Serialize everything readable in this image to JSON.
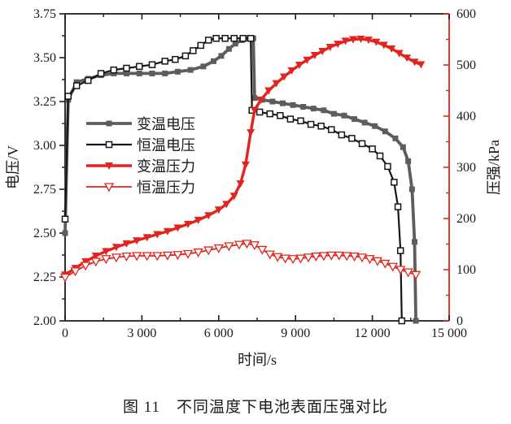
{
  "figure": {
    "caption": "图 11　不同温度下电池表面压强对比"
  },
  "chart_data": {
    "type": "line",
    "title": "",
    "x_axis": {
      "label": "时间/s",
      "min": 0,
      "max": 15000,
      "major_ticks": [
        0,
        3000,
        6000,
        9000,
        12000,
        15000
      ],
      "tick_labels": [
        "0",
        "3 000",
        "6 000",
        "9 000",
        "12 000",
        "15 000"
      ],
      "minor_step": 1500
    },
    "y_left": {
      "label": "电压/V",
      "min": 2.0,
      "max": 3.75,
      "major_ticks": [
        2.0,
        2.25,
        2.5,
        2.75,
        3.0,
        3.25,
        3.5,
        3.75
      ],
      "tick_labels": [
        "2.00",
        "2.25",
        "2.50",
        "2.75",
        "3.00",
        "3.25",
        "3.50",
        "3.75"
      ],
      "minor_step": 0.125,
      "axis_color": "#1a1a1a",
      "text_color": "#1a1a1a"
    },
    "y_right": {
      "label": "压强/kPa",
      "min": 0,
      "max": 600,
      "major_ticks": [
        0,
        100,
        200,
        300,
        400,
        500,
        600
      ],
      "tick_labels": [
        "0",
        "100",
        "200",
        "300",
        "400",
        "500",
        "600"
      ],
      "minor_step": 50,
      "axis_color": "#e2241e",
      "text_color": "#1a1a1a"
    },
    "grid": false,
    "legend": {
      "position": "upper-left-inside"
    },
    "series": [
      {
        "id": "variable-temp-voltage",
        "name": "变温电压",
        "axis": "left",
        "color": "#5d5d5d",
        "line_width": 3.8,
        "marker": "square_filled",
        "points": [
          [
            0,
            2.5
          ],
          [
            120,
            3.26
          ],
          [
            450,
            3.36
          ],
          [
            900,
            3.38
          ],
          [
            1400,
            3.4
          ],
          [
            1900,
            3.41
          ],
          [
            2400,
            3.41
          ],
          [
            2900,
            3.41
          ],
          [
            3400,
            3.41
          ],
          [
            3900,
            3.41
          ],
          [
            4400,
            3.42
          ],
          [
            4900,
            3.43
          ],
          [
            5400,
            3.45
          ],
          [
            5800,
            3.48
          ],
          [
            6100,
            3.51
          ],
          [
            6400,
            3.55
          ],
          [
            6650,
            3.58
          ],
          [
            6900,
            3.6
          ],
          [
            7150,
            3.61
          ],
          [
            7350,
            3.61
          ],
          [
            7400,
            3.27
          ],
          [
            7700,
            3.26
          ],
          [
            8100,
            3.25
          ],
          [
            8500,
            3.24
          ],
          [
            8900,
            3.23
          ],
          [
            9300,
            3.22
          ],
          [
            9700,
            3.21
          ],
          [
            10100,
            3.2
          ],
          [
            10500,
            3.18
          ],
          [
            10900,
            3.17
          ],
          [
            11300,
            3.15
          ],
          [
            11700,
            3.13
          ],
          [
            12100,
            3.11
          ],
          [
            12500,
            3.08
          ],
          [
            12900,
            3.04
          ],
          [
            13200,
            2.99
          ],
          [
            13400,
            2.91
          ],
          [
            13550,
            2.75
          ],
          [
            13650,
            2.45
          ],
          [
            13700,
            2.0
          ]
        ]
      },
      {
        "id": "constant-temp-voltage",
        "name": "恒温电压",
        "axis": "left",
        "color": "#161616",
        "line_width": 2.2,
        "marker": "square_open",
        "points": [
          [
            0,
            2.58
          ],
          [
            120,
            3.28
          ],
          [
            450,
            3.34
          ],
          [
            900,
            3.37
          ],
          [
            1400,
            3.41
          ],
          [
            1900,
            3.43
          ],
          [
            2400,
            3.44
          ],
          [
            2900,
            3.45
          ],
          [
            3400,
            3.46
          ],
          [
            3900,
            3.48
          ],
          [
            4300,
            3.49
          ],
          [
            4700,
            3.51
          ],
          [
            5000,
            3.54
          ],
          [
            5300,
            3.57
          ],
          [
            5600,
            3.6
          ],
          [
            5900,
            3.61
          ],
          [
            6250,
            3.61
          ],
          [
            6600,
            3.61
          ],
          [
            6950,
            3.61
          ],
          [
            7250,
            3.61
          ],
          [
            7300,
            3.2
          ],
          [
            7600,
            3.19
          ],
          [
            8000,
            3.18
          ],
          [
            8400,
            3.17
          ],
          [
            8800,
            3.15
          ],
          [
            9200,
            3.14
          ],
          [
            9600,
            3.12
          ],
          [
            10000,
            3.11
          ],
          [
            10400,
            3.09
          ],
          [
            10800,
            3.06
          ],
          [
            11200,
            3.04
          ],
          [
            11600,
            3.01
          ],
          [
            12000,
            2.98
          ],
          [
            12300,
            2.94
          ],
          [
            12600,
            2.88
          ],
          [
            12850,
            2.79
          ],
          [
            13000,
            2.65
          ],
          [
            13100,
            2.4
          ],
          [
            13150,
            2.0
          ]
        ]
      },
      {
        "id": "variable-temp-pressure",
        "name": "变温压力",
        "axis": "right",
        "color": "#e2241e",
        "line_width": 3.4,
        "marker": "triangle_down_filled",
        "points": [
          [
            0,
            90
          ],
          [
            400,
            103
          ],
          [
            800,
            116
          ],
          [
            1200,
            127
          ],
          [
            1600,
            136
          ],
          [
            2000,
            144
          ],
          [
            2400,
            151
          ],
          [
            2800,
            157
          ],
          [
            3200,
            163
          ],
          [
            3600,
            169
          ],
          [
            4000,
            175
          ],
          [
            4400,
            182
          ],
          [
            4800,
            189
          ],
          [
            5200,
            197
          ],
          [
            5600,
            206
          ],
          [
            6000,
            217
          ],
          [
            6300,
            228
          ],
          [
            6600,
            244
          ],
          [
            6850,
            268
          ],
          [
            7050,
            305
          ],
          [
            7250,
            368
          ],
          [
            7400,
            412
          ],
          [
            7650,
            432
          ],
          [
            7950,
            450
          ],
          [
            8250,
            464
          ],
          [
            8550,
            477
          ],
          [
            8850,
            489
          ],
          [
            9150,
            500
          ],
          [
            9450,
            510
          ],
          [
            9750,
            519
          ],
          [
            10050,
            527
          ],
          [
            10350,
            535
          ],
          [
            10650,
            541
          ],
          [
            10950,
            547
          ],
          [
            11250,
            550
          ],
          [
            11550,
            551
          ],
          [
            11850,
            549
          ],
          [
            12150,
            545
          ],
          [
            12450,
            539
          ],
          [
            12750,
            532
          ],
          [
            13050,
            523
          ],
          [
            13350,
            514
          ],
          [
            13650,
            506
          ],
          [
            13900,
            501
          ]
        ]
      },
      {
        "id": "constant-temp-pressure",
        "name": "恒温压力",
        "axis": "right",
        "color": "#e2241e",
        "line_width": 1.8,
        "marker": "triangle_down_open",
        "points": [
          [
            0,
            85
          ],
          [
            400,
            97
          ],
          [
            800,
            108
          ],
          [
            1200,
            116
          ],
          [
            1600,
            121
          ],
          [
            2000,
            124
          ],
          [
            2400,
            126
          ],
          [
            2800,
            127
          ],
          [
            3200,
            127
          ],
          [
            3600,
            127
          ],
          [
            4000,
            128
          ],
          [
            4400,
            129
          ],
          [
            4800,
            131
          ],
          [
            5200,
            134
          ],
          [
            5600,
            138
          ],
          [
            6000,
            142
          ],
          [
            6400,
            146
          ],
          [
            6800,
            149
          ],
          [
            7100,
            151
          ],
          [
            7400,
            148
          ],
          [
            7700,
            139
          ],
          [
            8000,
            130
          ],
          [
            8300,
            125
          ],
          [
            8600,
            122
          ],
          [
            8900,
            121
          ],
          [
            9200,
            122
          ],
          [
            9500,
            124
          ],
          [
            9800,
            126
          ],
          [
            10100,
            127
          ],
          [
            10400,
            128
          ],
          [
            10700,
            128
          ],
          [
            11000,
            127
          ],
          [
            11300,
            126
          ],
          [
            11600,
            124
          ],
          [
            11900,
            121
          ],
          [
            12200,
            117
          ],
          [
            12500,
            112
          ],
          [
            12800,
            106
          ],
          [
            13100,
            100
          ],
          [
            13400,
            95
          ],
          [
            13700,
            90
          ]
        ]
      }
    ]
  }
}
